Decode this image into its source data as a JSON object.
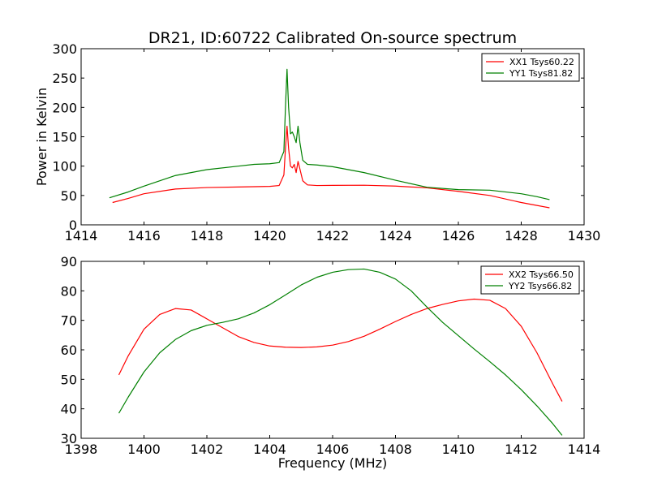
{
  "figure": {
    "title": "DR21, ID:60722 Calibrated On-source spectrum"
  },
  "chart_data": [
    {
      "type": "line",
      "title": "DR21, ID:60722 Calibrated On-source spectrum",
      "xlabel": "",
      "ylabel": "Power in Kelvin",
      "xlim": [
        1414,
        1430
      ],
      "ylim": [
        0,
        300
      ],
      "xticks": [
        1414,
        1416,
        1418,
        1420,
        1422,
        1424,
        1426,
        1428,
        1430
      ],
      "yticks": [
        0,
        50,
        100,
        150,
        200,
        250,
        300
      ],
      "grid": false,
      "legend_position": "top-right",
      "series": [
        {
          "name": "XX1 Tsys60.22",
          "color": "#ff0000",
          "points": [
            [
              1415.0,
              38
            ],
            [
              1415.5,
              45
            ],
            [
              1416.0,
              53
            ],
            [
              1417.0,
              61
            ],
            [
              1418.0,
              63.5
            ],
            [
              1419.0,
              64.5
            ],
            [
              1420.0,
              65.5
            ],
            [
              1420.3,
              67
            ],
            [
              1420.45,
              85
            ],
            [
              1420.5,
              130
            ],
            [
              1420.55,
              168
            ],
            [
              1420.6,
              130
            ],
            [
              1420.66,
              100
            ],
            [
              1420.72,
              97
            ],
            [
              1420.78,
              103
            ],
            [
              1420.84,
              89
            ],
            [
              1420.9,
              108
            ],
            [
              1420.96,
              95
            ],
            [
              1421.05,
              75
            ],
            [
              1421.2,
              68
            ],
            [
              1421.5,
              67
            ],
            [
              1422.0,
              67.2
            ],
            [
              1423.0,
              67.5
            ],
            [
              1424.0,
              66
            ],
            [
              1425.0,
              63
            ],
            [
              1426.0,
              57
            ],
            [
              1427.0,
              50
            ],
            [
              1428.0,
              38
            ],
            [
              1428.5,
              33
            ],
            [
              1428.9,
              29
            ]
          ]
        },
        {
          "name": "YY1 Tsys81.82",
          "color": "#008000",
          "points": [
            [
              1414.9,
              46
            ],
            [
              1415.5,
              56
            ],
            [
              1416.0,
              66
            ],
            [
              1417.0,
              84
            ],
            [
              1418.0,
              94
            ],
            [
              1419.0,
              100
            ],
            [
              1419.5,
              103
            ],
            [
              1420.0,
              104
            ],
            [
              1420.3,
              106
            ],
            [
              1420.45,
              125
            ],
            [
              1420.5,
              200
            ],
            [
              1420.55,
              265
            ],
            [
              1420.6,
              200
            ],
            [
              1420.66,
              155
            ],
            [
              1420.72,
              158
            ],
            [
              1420.78,
              150
            ],
            [
              1420.84,
              140
            ],
            [
              1420.9,
              168
            ],
            [
              1420.96,
              140
            ],
            [
              1421.05,
              110
            ],
            [
              1421.2,
              103
            ],
            [
              1421.5,
              102
            ],
            [
              1422.0,
              99
            ],
            [
              1423.0,
              89
            ],
            [
              1424.0,
              76
            ],
            [
              1425.0,
              64
            ],
            [
              1426.0,
              60
            ],
            [
              1427.0,
              59
            ],
            [
              1428.0,
              53
            ],
            [
              1428.5,
              48
            ],
            [
              1428.9,
              43
            ]
          ]
        }
      ]
    },
    {
      "type": "line",
      "xlabel": "Frequency (MHz)",
      "ylabel": "",
      "xlim": [
        1398,
        1414
      ],
      "ylim": [
        30,
        90
      ],
      "xticks": [
        1398,
        1400,
        1402,
        1404,
        1406,
        1408,
        1410,
        1412,
        1414
      ],
      "yticks": [
        30,
        40,
        50,
        60,
        70,
        80,
        90
      ],
      "grid": false,
      "legend_position": "top-right",
      "series": [
        {
          "name": "XX2 Tsys66.50",
          "color": "#ff0000",
          "points": [
            [
              1399.2,
              51.5
            ],
            [
              1399.5,
              58
            ],
            [
              1400.0,
              67
            ],
            [
              1400.5,
              72
            ],
            [
              1401.0,
              74
            ],
            [
              1401.5,
              73.5
            ],
            [
              1402.0,
              70.5
            ],
            [
              1402.5,
              67.5
            ],
            [
              1403.0,
              64.5
            ],
            [
              1403.5,
              62.5
            ],
            [
              1404.0,
              61.3
            ],
            [
              1404.5,
              60.9
            ],
            [
              1405.0,
              60.8
            ],
            [
              1405.5,
              61
            ],
            [
              1406.0,
              61.6
            ],
            [
              1406.5,
              62.8
            ],
            [
              1407.0,
              64.6
            ],
            [
              1407.5,
              67
            ],
            [
              1408.0,
              69.6
            ],
            [
              1408.5,
              72
            ],
            [
              1409.0,
              74
            ],
            [
              1409.5,
              75.4
            ],
            [
              1410.0,
              76.6
            ],
            [
              1410.5,
              77.2
            ],
            [
              1411.0,
              76.8
            ],
            [
              1411.5,
              74
            ],
            [
              1412.0,
              68
            ],
            [
              1412.5,
              59
            ],
            [
              1413.0,
              48.5
            ],
            [
              1413.3,
              42.5
            ]
          ]
        },
        {
          "name": "YY2 Tsys66.82",
          "color": "#008000",
          "points": [
            [
              1399.2,
              38.5
            ],
            [
              1399.5,
              44
            ],
            [
              1400.0,
              52.5
            ],
            [
              1400.5,
              59
            ],
            [
              1401.0,
              63.5
            ],
            [
              1401.5,
              66.5
            ],
            [
              1402.0,
              68.3
            ],
            [
              1402.5,
              69.3
            ],
            [
              1403.0,
              70.5
            ],
            [
              1403.5,
              72.5
            ],
            [
              1404.0,
              75.3
            ],
            [
              1404.5,
              78.6
            ],
            [
              1405.0,
              82
            ],
            [
              1405.5,
              84.6
            ],
            [
              1406.0,
              86.3
            ],
            [
              1406.5,
              87.2
            ],
            [
              1407.0,
              87.4
            ],
            [
              1407.5,
              86.3
            ],
            [
              1408.0,
              84
            ],
            [
              1408.5,
              80
            ],
            [
              1409.0,
              74.5
            ],
            [
              1409.5,
              69.3
            ],
            [
              1410.0,
              64.8
            ],
            [
              1410.5,
              60.3
            ],
            [
              1411.0,
              56
            ],
            [
              1411.5,
              51.5
            ],
            [
              1412.0,
              46.5
            ],
            [
              1412.5,
              41
            ],
            [
              1413.0,
              35
            ],
            [
              1413.3,
              31
            ]
          ]
        }
      ]
    }
  ]
}
